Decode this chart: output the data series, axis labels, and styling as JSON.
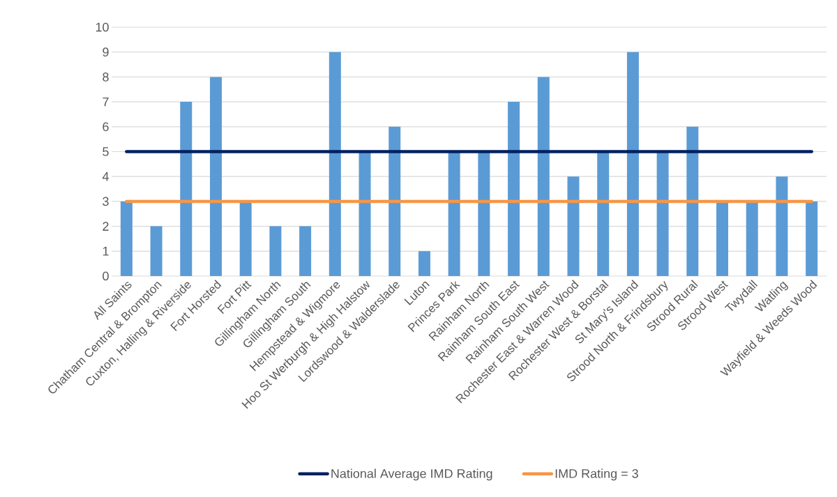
{
  "chart_data": {
    "type": "bar",
    "categories": [
      "All Saints",
      "Chatham Central & Brompton",
      "Cuxton, Halling & Riverside",
      "Fort Horsted",
      "Fort Pitt",
      "Gillingham North",
      "Gillingham South",
      "Hempstead & Wigmore",
      "Hoo St Werburgh & High Halstow",
      "Lordswood & Walderslade",
      "Luton",
      "Princes Park",
      "Rainham North",
      "Rainham South East",
      "Rainham South West",
      "Rochester East & Warren Wood",
      "Rochester West & Borstal",
      "St Mary's Island",
      "Strood North & Frindsbury",
      "Strood Rural",
      "Strood West",
      "Twydall",
      "Watling",
      "Wayfield & Weeds Wood"
    ],
    "series": [
      {
        "color": "#5b9bd5",
        "values": [
          3,
          2,
          7,
          8,
          3,
          2,
          2,
          9,
          5,
          6,
          1,
          5,
          5,
          7,
          8,
          4,
          5,
          9,
          5,
          6,
          3,
          3,
          4,
          3
        ]
      },
      {
        "type": "line",
        "name": "National Average IMD Rating",
        "color": "#002060",
        "values": [
          5,
          5,
          5,
          5,
          5,
          5,
          5,
          5,
          5,
          5,
          5,
          5,
          5,
          5,
          5,
          5,
          5,
          5,
          5,
          5,
          5,
          5,
          5,
          5
        ]
      },
      {
        "type": "line",
        "name": "IMD Rating = 3",
        "color": "#f79646",
        "values": [
          3,
          3,
          3,
          3,
          3,
          3,
          3,
          3,
          3,
          3,
          3,
          3,
          3,
          3,
          3,
          3,
          3,
          3,
          3,
          3,
          3,
          3,
          3,
          3
        ]
      }
    ],
    "ylim": [
      0,
      10
    ],
    "yticks": [
      0,
      1,
      2,
      3,
      4,
      5,
      6,
      7,
      8,
      9,
      10
    ],
    "grid": "y",
    "legend": "bottom",
    "line_style": "solid"
  }
}
